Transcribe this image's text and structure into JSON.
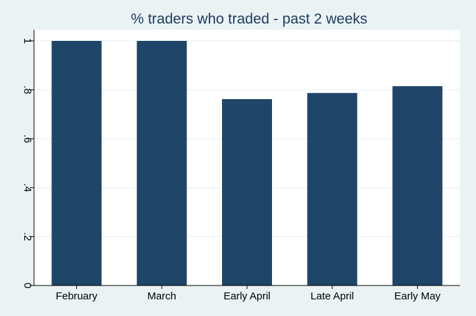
{
  "chart_data": {
    "type": "bar",
    "title": "% traders who traded - past 2 weeks",
    "categories": [
      "February",
      "March",
      "Early April",
      "Late April",
      "Early May"
    ],
    "values": [
      1.0,
      1.0,
      0.762,
      0.787,
      0.815
    ],
    "xlabel": "",
    "ylabel": "",
    "ylim": [
      0,
      1
    ],
    "yticks": [
      0,
      0.2,
      0.4,
      0.6,
      0.8,
      1
    ],
    "ytick_labels": [
      "0",
      ".2",
      ".4",
      ".6",
      ".8",
      "1"
    ],
    "grid": true,
    "legend": "none",
    "colors": {
      "bar": "#1f4568",
      "plot_background": "#ffffff",
      "outer_background": "#eaf2f3",
      "grid": "#eaf2f3",
      "title": "#1e3a5f"
    }
  }
}
